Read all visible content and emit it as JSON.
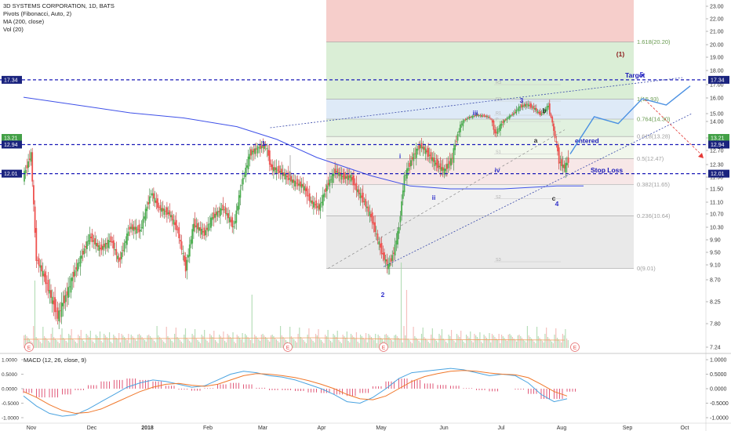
{
  "header": {
    "title": "3D SYSTEMS CORPORATION, 1D, BATS",
    "indicators": [
      "Pivots (Fibonacci, Auto, 2)",
      "MA (200, close)",
      "Vol (20)"
    ],
    "macd_label": "MACD (12, 26, close, 9)"
  },
  "colors": {
    "up": "#4caf50",
    "down": "#ef5350",
    "ma": "#3f51e8",
    "level_line": "#1a1ab8",
    "forecast": "#4a90e2",
    "macd": "#4aa3e0",
    "signal": "#f0772a",
    "hist": "#e05a7a"
  },
  "chart_data": [
    {
      "type": "candlestick",
      "title": "3D SYSTEMS CORPORATION, 1D, BATS",
      "x_ticks": [
        "Nov",
        "Dec",
        "2018",
        "Feb",
        "Mar",
        "Apr",
        "May",
        "Jun",
        "Jul",
        "Aug",
        "Sep",
        "Oct"
      ],
      "y_ticks": [
        7.24,
        7.8,
        8.25,
        8.7,
        9.1,
        9.5,
        9.9,
        10.3,
        10.7,
        11.1,
        11.5,
        11.9,
        12.3,
        12.7,
        13.21,
        14.0,
        15.0,
        16.0,
        17.0,
        18.0,
        19.0,
        20.0,
        21.0,
        22.0,
        23.0
      ],
      "ylim": [
        6.5,
        23.5
      ],
      "price_path": [
        [
          0,
          11.9
        ],
        [
          6,
          12.6
        ],
        [
          10,
          9.3
        ],
        [
          18,
          8.6
        ],
        [
          26,
          7.95
        ],
        [
          34,
          8.5
        ],
        [
          42,
          9.2
        ],
        [
          50,
          10.0
        ],
        [
          58,
          9.6
        ],
        [
          66,
          9.9
        ],
        [
          72,
          9.2
        ],
        [
          80,
          10.3
        ],
        [
          88,
          10.2
        ],
        [
          96,
          11.4
        ],
        [
          102,
          10.9
        ],
        [
          110,
          10.7
        ],
        [
          116,
          10.2
        ],
        [
          122,
          9.0
        ],
        [
          128,
          10.4
        ],
        [
          136,
          10.1
        ],
        [
          142,
          10.6
        ],
        [
          150,
          10.9
        ],
        [
          158,
          10.3
        ],
        [
          164,
          11.7
        ],
        [
          170,
          12.6
        ],
        [
          176,
          12.8
        ],
        [
          182,
          12.9
        ],
        [
          186,
          12.2
        ],
        [
          192,
          12.1
        ],
        [
          198,
          11.9
        ],
        [
          204,
          11.7
        ],
        [
          210,
          11.6
        ],
        [
          216,
          11.1
        ],
        [
          222,
          10.9
        ],
        [
          228,
          11.6
        ],
        [
          234,
          12.1
        ],
        [
          240,
          11.9
        ],
        [
          246,
          11.9
        ],
        [
          250,
          11.5
        ],
        [
          256,
          11.1
        ],
        [
          262,
          10.5
        ],
        [
          266,
          9.9
        ],
        [
          270,
          9.4
        ],
        [
          274,
          9.05
        ],
        [
          278,
          9.5
        ],
        [
          282,
          10.3
        ],
        [
          286,
          11.9
        ],
        [
          292,
          12.5
        ],
        [
          298,
          12.9
        ],
        [
          304,
          12.6
        ],
        [
          310,
          12.3
        ],
        [
          316,
          12.1
        ],
        [
          322,
          12.5
        ],
        [
          328,
          13.8
        ],
        [
          334,
          14.5
        ],
        [
          340,
          14.8
        ],
        [
          346,
          14.7
        ],
        [
          350,
          14.5
        ],
        [
          354,
          13.4
        ],
        [
          360,
          14.0
        ],
        [
          366,
          14.8
        ],
        [
          372,
          15.4
        ],
        [
          378,
          15.6
        ],
        [
          384,
          15.3
        ],
        [
          388,
          14.9
        ],
        [
          394,
          15.5
        ],
        [
          398,
          13.5
        ],
        [
          402,
          12.4
        ],
        [
          406,
          12.2
        ],
        [
          410,
          12.5
        ],
        [
          414,
          12.9
        ]
      ],
      "ma200_path": [
        [
          0,
          16.05
        ],
        [
          40,
          15.55
        ],
        [
          80,
          15.05
        ],
        [
          120,
          14.45
        ],
        [
          160,
          13.75
        ],
        [
          190,
          13.15
        ],
        [
          220,
          12.5
        ],
        [
          260,
          11.95
        ],
        [
          290,
          11.6
        ],
        [
          320,
          11.5
        ],
        [
          360,
          11.5
        ],
        [
          400,
          11.6
        ],
        [
          420,
          11.6
        ]
      ],
      "fib_levels": [
        {
          "label": "1.618(20.20)",
          "value": 20.2
        },
        {
          "label": "1(15.93)",
          "value": 15.93
        },
        {
          "label": "0.764(14.30)",
          "value": 14.3
        },
        {
          "label": "0.618(13.28)",
          "value": 13.28
        },
        {
          "label": "0.5(12.47)",
          "value": 12.47
        },
        {
          "label": "0.382(11.65)",
          "value": 11.65
        },
        {
          "label": "0.236(10.64)",
          "value": 10.64
        },
        {
          "label": "0(9.01)",
          "value": 9.01
        }
      ],
      "pivot_labels": [
        "R3",
        "R2",
        "R1",
        "P",
        "S1",
        "S2",
        "S3"
      ],
      "levels": [
        {
          "label": "Target",
          "value": 17.34
        },
        {
          "label": "entered",
          "value": 12.94
        },
        {
          "label": "Stop Loss",
          "value": 12.01
        }
      ],
      "price_tags": [
        {
          "value": 17.34,
          "label": "17.34"
        },
        {
          "value": 13.21,
          "label": "13.21"
        },
        {
          "value": 12.94,
          "label": "12.94"
        },
        {
          "value": 12.01,
          "label": "12.01"
        }
      ],
      "wave_labels": [
        "1",
        "2",
        "3",
        "4",
        "5",
        "(1)",
        "i",
        "ii",
        "iii",
        "iv",
        "a",
        "b",
        "c"
      ],
      "earnings_markers": [
        "E",
        "E",
        "E",
        "E"
      ],
      "forecast_path": [
        [
          410,
          12.6
        ],
        [
          428,
          14.6
        ],
        [
          446,
          13.9
        ],
        [
          464,
          15.95
        ],
        [
          482,
          15.55
        ],
        [
          500,
          16.9
        ]
      ],
      "channel": {
        "upper": [
          [
            185,
            13.7
          ],
          [
            560,
            17.5
          ]
        ],
        "lower": [
          [
            270,
            9.05
          ],
          [
            560,
            15.0
          ]
        ],
        "mid": [
          [
            210,
            9.0
          ],
          [
            400,
            13.6
          ]
        ]
      }
    },
    {
      "type": "line",
      "title": "MACD (12, 26, close, 9)",
      "y_ticks": [
        1.0,
        0.5,
        0.0,
        -0.5,
        -1.0
      ],
      "y_tick_labels": [
        "1.0000",
        "0.5000",
        "0.0000",
        "-0.5000",
        "-1.0000"
      ],
      "ylim": [
        -1.3,
        1.3
      ],
      "series": [
        {
          "name": "MACD",
          "values": [
            -0.25,
            -0.6,
            -0.85,
            -0.95,
            -0.9,
            -0.7,
            -0.45,
            -0.2,
            0.05,
            0.2,
            0.3,
            0.25,
            0.15,
            0.05,
            0.1,
            0.3,
            0.5,
            0.6,
            0.55,
            0.45,
            0.4,
            0.3,
            0.15,
            0.0,
            -0.2,
            -0.45,
            -0.5,
            -0.3,
            0.0,
            0.35,
            0.55,
            0.6,
            0.65,
            0.7,
            0.65,
            0.55,
            0.45,
            0.5,
            0.45,
            0.2,
            -0.2,
            -0.45,
            -0.35
          ]
        },
        {
          "name": "Signal",
          "values": [
            -0.1,
            -0.3,
            -0.55,
            -0.75,
            -0.85,
            -0.82,
            -0.7,
            -0.5,
            -0.3,
            -0.1,
            0.05,
            0.15,
            0.18,
            0.12,
            0.08,
            0.15,
            0.3,
            0.45,
            0.52,
            0.5,
            0.45,
            0.38,
            0.28,
            0.15,
            0.0,
            -0.2,
            -0.35,
            -0.38,
            -0.25,
            0.0,
            0.25,
            0.42,
            0.52,
            0.6,
            0.63,
            0.6,
            0.54,
            0.5,
            0.48,
            0.38,
            0.15,
            -0.1,
            -0.25
          ]
        }
      ]
    }
  ]
}
